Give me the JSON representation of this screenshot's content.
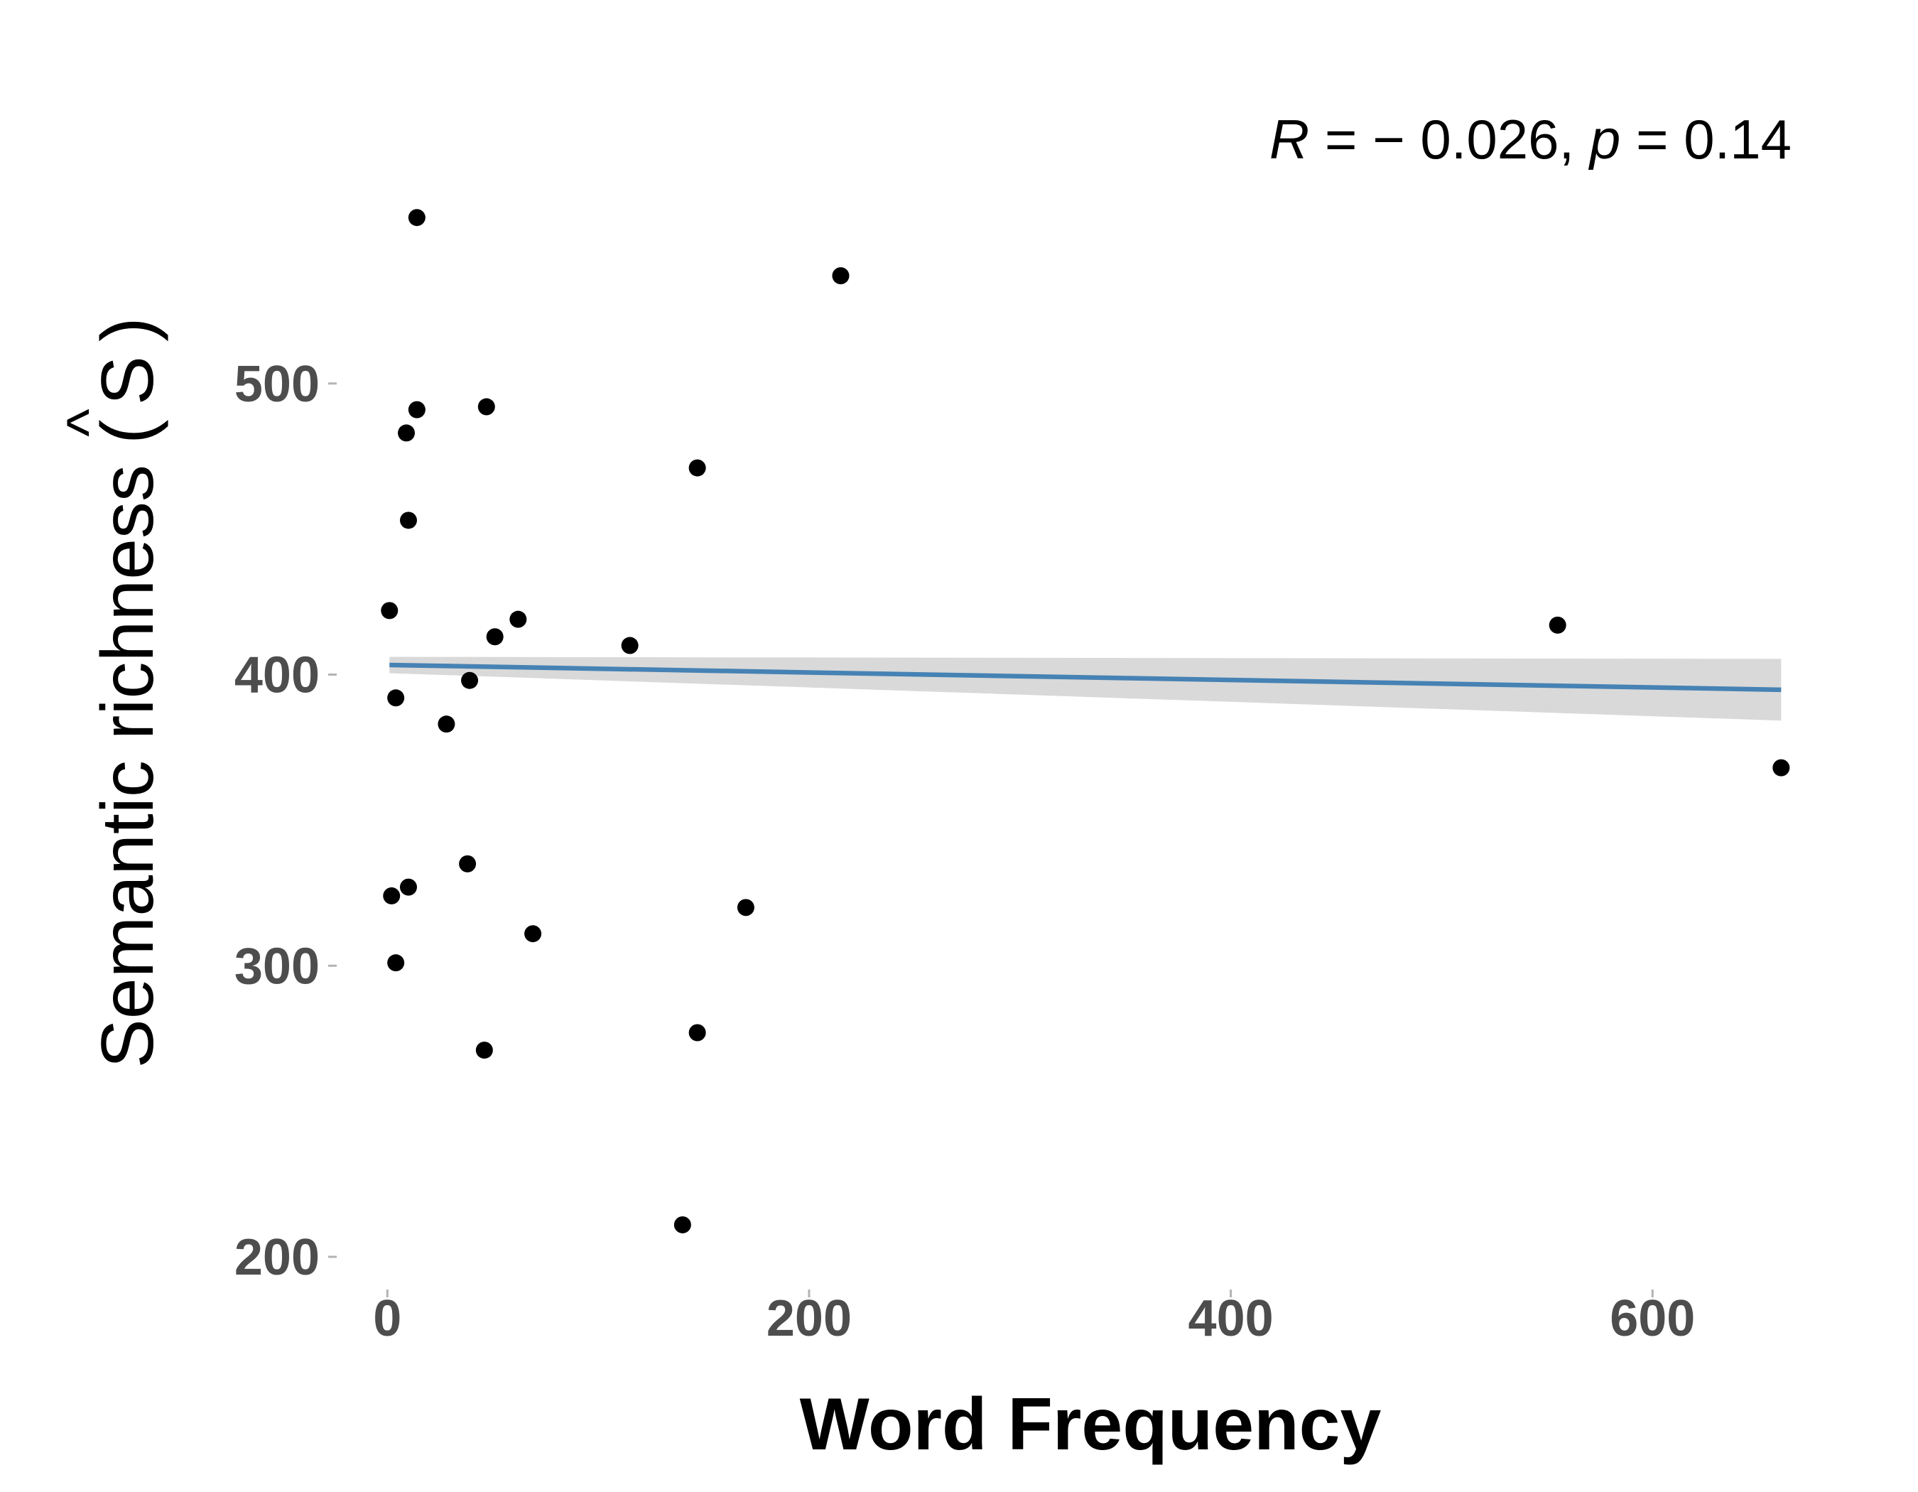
{
  "chart_data": {
    "type": "scatter",
    "title": "",
    "xlabel": "Word Frequency",
    "ylabel": "Semantic richness (Ŝ)",
    "ylabel_parts": {
      "prefix": "Semantic richness ",
      "open": "(",
      "symbol": "S",
      "hat": "^",
      "close": ")"
    },
    "xlim": [
      -22,
      672
    ],
    "ylim": [
      190,
      600
    ],
    "x_ticks": [
      0,
      200,
      400,
      600
    ],
    "y_ticks": [
      200,
      300,
      400,
      500
    ],
    "x_tick_labels": [
      "0",
      "200",
      "400",
      "600"
    ],
    "y_tick_labels": [
      "200",
      "300",
      "400",
      "500"
    ],
    "grid": false,
    "legend": "none",
    "annotation": {
      "R_symbol": "R",
      "eq1": " = − 0.026, ",
      "p_symbol": "p",
      "eq2": " = 0.14",
      "r": -0.026,
      "p": 0.14
    },
    "colors": {
      "points": "#000000",
      "fit_line": "#4682b4",
      "ci_band": "#d9d9d9",
      "tick_text": "#4d4d4d"
    },
    "points": [
      {
        "x": 14,
        "y": 557
      },
      {
        "x": 215,
        "y": 537
      },
      {
        "x": 14,
        "y": 491
      },
      {
        "x": 47,
        "y": 492
      },
      {
        "x": 9,
        "y": 483
      },
      {
        "x": 147,
        "y": 471
      },
      {
        "x": 10,
        "y": 453
      },
      {
        "x": 1,
        "y": 422
      },
      {
        "x": 62,
        "y": 419
      },
      {
        "x": 51,
        "y": 413
      },
      {
        "x": 115,
        "y": 410
      },
      {
        "x": 555,
        "y": 417
      },
      {
        "x": 39,
        "y": 398
      },
      {
        "x": 4,
        "y": 392
      },
      {
        "x": 28,
        "y": 383
      },
      {
        "x": 661,
        "y": 368
      },
      {
        "x": 38,
        "y": 335
      },
      {
        "x": 10,
        "y": 327
      },
      {
        "x": 2,
        "y": 324
      },
      {
        "x": 170,
        "y": 320
      },
      {
        "x": 69,
        "y": 311
      },
      {
        "x": 4,
        "y": 301
      },
      {
        "x": 147,
        "y": 277
      },
      {
        "x": 46,
        "y": 271
      },
      {
        "x": 140,
        "y": 211
      }
    ],
    "fit": {
      "x": [
        1,
        661
      ],
      "y": [
        403.3,
        394.8
      ],
      "ci_lower": [
        400.5,
        384.2
      ],
      "ci_upper": [
        406.1,
        405.4
      ]
    }
  }
}
